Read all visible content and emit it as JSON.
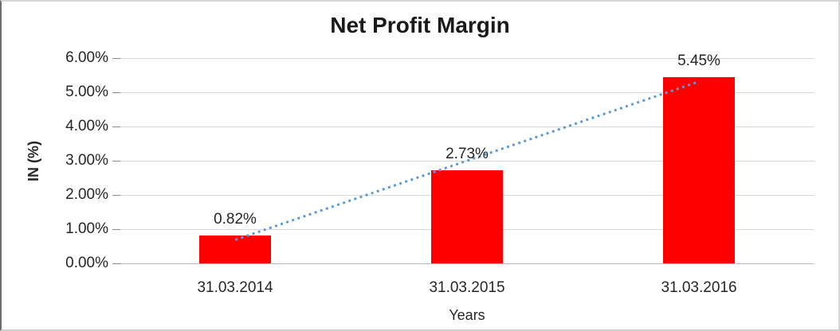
{
  "chart_data": {
    "type": "bar",
    "title": "Net Profit Margin",
    "xlabel": "Years",
    "ylabel": "IN (%)",
    "categories": [
      "31.03.2014",
      "31.03.2015",
      "31.03.2016"
    ],
    "values": [
      0.82,
      2.73,
      5.45
    ],
    "data_labels": [
      "0.82%",
      "2.73%",
      "5.45%"
    ],
    "ylim": [
      0,
      6
    ],
    "ytick_labels": [
      "0.00%",
      "1.00%",
      "2.00%",
      "3.00%",
      "4.00%",
      "5.00%",
      "6.00%"
    ],
    "grid": true,
    "legend": "none",
    "bar_color": "#ff0000",
    "gridline_color": "#d9d9d9",
    "trendline": {
      "type": "linear",
      "style": "dotted",
      "color": "#5b9bd5",
      "start_value": 0.69,
      "end_value": 5.31
    }
  }
}
